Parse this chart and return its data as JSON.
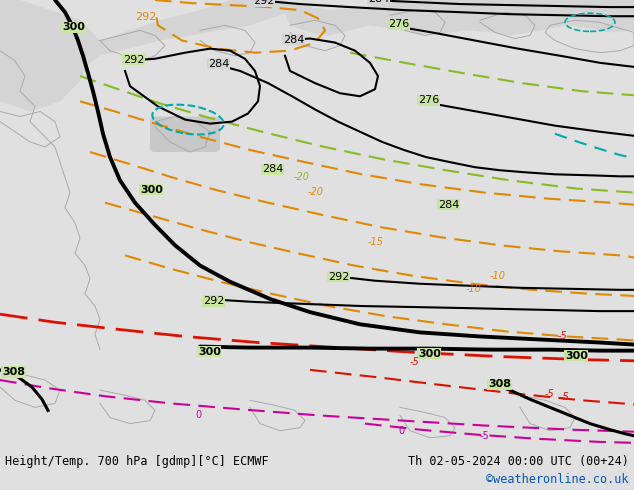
{
  "title_left": "Height/Temp. 700 hPa [gdmp][°C] ECMWF",
  "title_right": "Th 02-05-2024 00:00 UTC (00+24)",
  "watermark": "©weatheronline.co.uk",
  "bg_land_green": "#c8e6a0",
  "bg_sea_gray": "#d0d0d0",
  "bg_outer": "#e0e0e0",
  "coast_color": "#aaaaaa",
  "black_contour_lw": 2.0,
  "orange_color": "#e08800",
  "red_color": "#dd1100",
  "magenta_color": "#cc0099",
  "lime_color": "#88bb22",
  "cyan_color": "#00aaaa",
  "watermark_color": "#0055cc",
  "footer_color": "#000000",
  "label_fontsize": 8,
  "footer_fontsize": 8.5
}
